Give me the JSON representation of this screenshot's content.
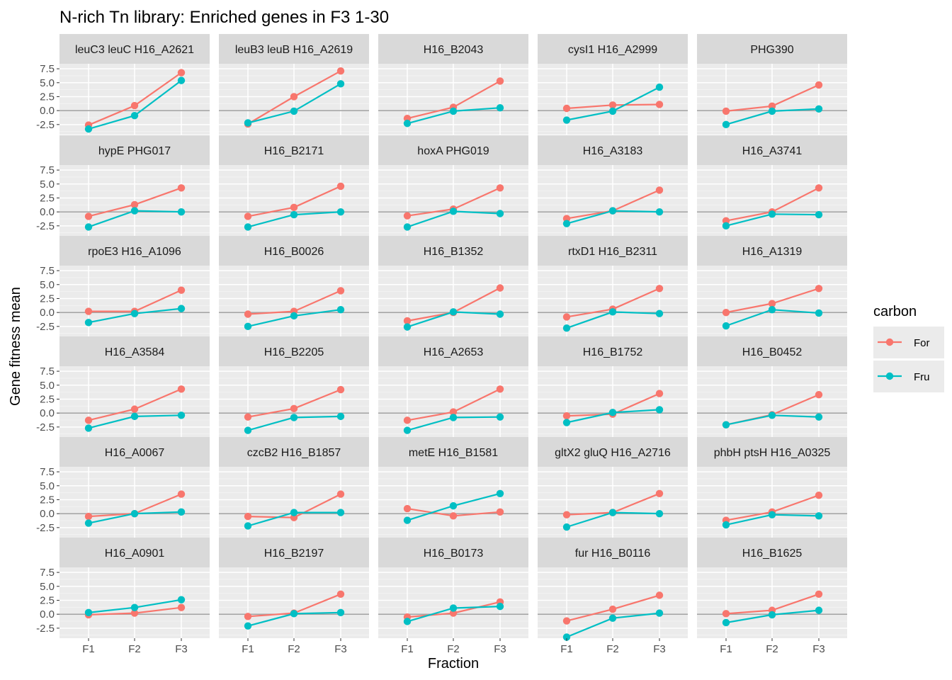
{
  "chart_data": {
    "type": "line",
    "title": "N-rich Tn library: Enriched genes in F3 1-30",
    "xlabel": "Fraction",
    "ylabel": "Gene fitness mean",
    "x_categories": [
      "F1",
      "F2",
      "F3"
    ],
    "y_ticks": [
      "7.5",
      "5.0",
      "2.5",
      "0.0",
      "-2.5"
    ],
    "ylim": [
      -4.3,
      8.4
    ],
    "legend": {
      "title": "carbon",
      "placement": "right",
      "entries": [
        {
          "label": "For",
          "color": "#F8766D"
        },
        {
          "label": "Fru",
          "color": "#00BFC4"
        }
      ]
    },
    "panels": [
      {
        "label": "leuC3 leuC H16_A2621",
        "For": [
          -2.6,
          0.9,
          6.8
        ],
        "Fru": [
          -3.3,
          -0.9,
          5.4
        ]
      },
      {
        "label": "leuB3 leuB H16_A2619",
        "For": [
          -2.4,
          2.5,
          7.1
        ],
        "Fru": [
          -2.2,
          -0.1,
          4.8
        ]
      },
      {
        "label": "H16_B2043",
        "For": [
          -1.4,
          0.6,
          5.3
        ],
        "Fru": [
          -2.3,
          -0.1,
          0.5
        ]
      },
      {
        "label": "cysI1 H16_A2999",
        "For": [
          0.4,
          1.0,
          1.1
        ],
        "Fru": [
          -1.7,
          -0.1,
          4.2
        ]
      },
      {
        "label": "PHG390",
        "For": [
          -0.1,
          0.8,
          4.6
        ],
        "Fru": [
          -2.5,
          -0.1,
          0.3
        ]
      },
      {
        "label": "hypE PHG017",
        "For": [
          -0.8,
          1.3,
          4.3
        ],
        "Fru": [
          -2.7,
          0.2,
          0.0
        ]
      },
      {
        "label": "H16_B2171",
        "For": [
          -0.8,
          0.8,
          4.6
        ],
        "Fru": [
          -2.7,
          -0.5,
          0.0
        ]
      },
      {
        "label": "hoxA PHG019",
        "For": [
          -0.7,
          0.5,
          4.3
        ],
        "Fru": [
          -2.7,
          0.1,
          -0.3
        ]
      },
      {
        "label": "H16_A3183",
        "For": [
          -1.2,
          0.2,
          3.9
        ],
        "Fru": [
          -2.1,
          0.2,
          0.0
        ]
      },
      {
        "label": "H16_A3741",
        "For": [
          -1.6,
          0.0,
          4.3
        ],
        "Fru": [
          -2.5,
          -0.4,
          -0.5
        ]
      },
      {
        "label": "rpoE3 H16_A1096",
        "For": [
          0.2,
          0.2,
          4.0
        ],
        "Fru": [
          -1.8,
          -0.2,
          0.7
        ]
      },
      {
        "label": "H16_B0026",
        "For": [
          -0.3,
          0.2,
          3.9
        ],
        "Fru": [
          -2.5,
          -0.6,
          0.5
        ]
      },
      {
        "label": "H16_B1352",
        "For": [
          -1.5,
          0.0,
          4.4
        ],
        "Fru": [
          -2.6,
          0.1,
          -0.3
        ]
      },
      {
        "label": "rtxD1 H16_B2311",
        "For": [
          -0.8,
          0.6,
          4.3
        ],
        "Fru": [
          -2.8,
          0.1,
          -0.2
        ]
      },
      {
        "label": "H16_A1319",
        "For": [
          0.0,
          1.6,
          4.3
        ],
        "Fru": [
          -2.4,
          0.5,
          -0.1
        ]
      },
      {
        "label": "H16_A3584",
        "For": [
          -1.3,
          0.7,
          4.3
        ],
        "Fru": [
          -2.7,
          -0.6,
          -0.4
        ]
      },
      {
        "label": "H16_B2205",
        "For": [
          -0.7,
          0.8,
          4.2
        ],
        "Fru": [
          -3.1,
          -0.8,
          -0.6
        ]
      },
      {
        "label": "H16_A2653",
        "For": [
          -1.3,
          0.2,
          4.3
        ],
        "Fru": [
          -3.1,
          -0.8,
          -0.7
        ]
      },
      {
        "label": "H16_B1752",
        "For": [
          -0.5,
          -0.2,
          3.5
        ],
        "Fru": [
          -1.7,
          0.1,
          0.6
        ]
      },
      {
        "label": "H16_B0452",
        "For": [
          -2.1,
          -0.3,
          3.3
        ],
        "Fru": [
          -2.1,
          -0.4,
          -0.7
        ]
      },
      {
        "label": "H16_A0067",
        "For": [
          -0.5,
          0.0,
          3.5
        ],
        "Fru": [
          -1.7,
          0.0,
          0.3
        ]
      },
      {
        "label": "czcB2 H16_B1857",
        "For": [
          -0.5,
          -0.7,
          3.5
        ],
        "Fru": [
          -2.2,
          0.2,
          0.2
        ]
      },
      {
        "label": "metE H16_B1581",
        "For": [
          0.9,
          -0.4,
          0.3
        ],
        "Fru": [
          -1.2,
          1.4,
          3.6
        ]
      },
      {
        "label": "gltX2 gluQ H16_A2716",
        "For": [
          -0.2,
          0.2,
          3.6
        ],
        "Fru": [
          -2.4,
          0.2,
          0.0
        ]
      },
      {
        "label": "phbH ptsH H16_A0325",
        "For": [
          -1.2,
          0.3,
          3.3
        ],
        "Fru": [
          -2.0,
          -0.2,
          -0.4
        ]
      },
      {
        "label": "H16_A0901",
        "For": [
          -0.1,
          0.2,
          1.2
        ],
        "Fru": [
          0.3,
          1.2,
          2.6
        ]
      },
      {
        "label": "H16_B2197",
        "For": [
          -0.4,
          0.2,
          3.6
        ],
        "Fru": [
          -2.1,
          0.1,
          0.3
        ]
      },
      {
        "label": "H16_B0173",
        "For": [
          -0.5,
          0.2,
          2.2
        ],
        "Fru": [
          -1.3,
          1.1,
          1.4
        ]
      },
      {
        "label": "fur H16_B0116",
        "For": [
          -1.2,
          0.9,
          3.4
        ],
        "Fru": [
          -4.1,
          -0.7,
          0.2
        ]
      },
      {
        "label": "H16_B1625",
        "For": [
          0.1,
          0.7,
          3.6
        ],
        "Fru": [
          -1.5,
          -0.1,
          0.7
        ]
      }
    ]
  }
}
